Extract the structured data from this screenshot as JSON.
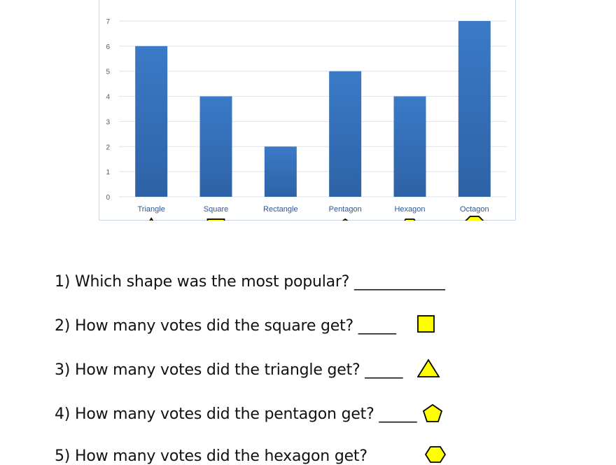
{
  "chart_data": {
    "type": "bar",
    "categories": [
      "Triangle",
      "Square",
      "Rectangle",
      "Pentagon",
      "Hexagon",
      "Octagon"
    ],
    "values": [
      6,
      4,
      2,
      5,
      4,
      7
    ],
    "ylim": [
      0,
      7
    ],
    "yticks": [
      0,
      1,
      2,
      3,
      4,
      5,
      6,
      7
    ],
    "grid": true,
    "bar_color": "#3b7ac7",
    "grid_color": "#d9e2f1",
    "tick_color": "#595959",
    "category_label_color": "#2f5597"
  },
  "shape_icons": [
    "triangle-icon",
    "square-icon",
    "rectangle-icon",
    "pentagon-icon",
    "hexagon-icon",
    "octagon-icon"
  ],
  "icon_colors": {
    "fill": "#ffff00",
    "stroke": "#000000"
  },
  "questions": [
    {
      "text": "1) Which shape was the most popular? ____________",
      "icon": ""
    },
    {
      "text": "2) How many votes did the square get? _____",
      "icon": "square-icon"
    },
    {
      "text": "3) How many votes did the triangle get? _____",
      "icon": "triangle-icon"
    },
    {
      "text": "4) How many votes did the pentagon get? _____",
      "icon": "pentagon-icon"
    },
    {
      "text": "5) How many votes did the hexagon get?",
      "icon": "hexagon-icon"
    }
  ]
}
